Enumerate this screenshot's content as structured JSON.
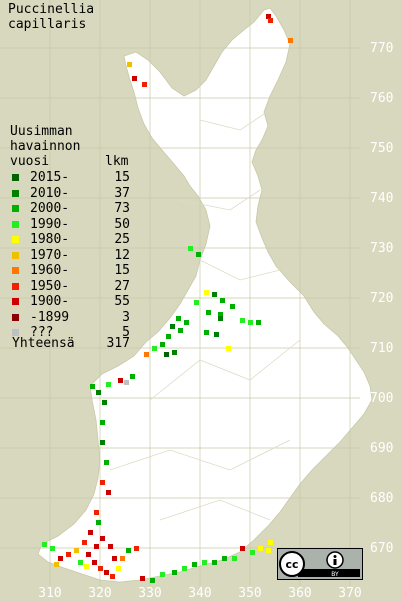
{
  "title_lines": [
    "Puccinellia",
    "capillaris"
  ],
  "legend_heading": [
    "Uusimman",
    "havainnon",
    "vuosi"
  ],
  "legend_count_heading": "lkm",
  "legend": [
    {
      "label": "2015-",
      "count": "15",
      "color": "#006400"
    },
    {
      "label": "2010-",
      "count": "37",
      "color": "#008000"
    },
    {
      "label": "2000-",
      "count": "73",
      "color": "#00b000"
    },
    {
      "label": "1990-",
      "count": "50",
      "color": "#22ee22"
    },
    {
      "label": "1980-",
      "count": "25",
      "color": "#ffff00"
    },
    {
      "label": "1970-",
      "count": "12",
      "color": "#f0c000"
    },
    {
      "label": "1960-",
      "count": "15",
      "color": "#ff7700"
    },
    {
      "label": "1950-",
      "count": "27",
      "color": "#ee2200"
    },
    {
      "label": "1900-",
      "count": "55",
      "color": "#cc0000"
    },
    {
      "label": "-1899",
      "count": "3",
      "color": "#880000"
    },
    {
      "label": "???",
      "count": "5",
      "color": "#c0c0c0"
    }
  ],
  "total_label": "Yhteensä",
  "total_count": "317",
  "y_axis_labels": [
    "770",
    "760",
    "750",
    "740",
    "730",
    "720",
    "710",
    "700",
    "690",
    "680",
    "670"
  ],
  "x_axis_labels": [
    "310",
    "320",
    "330",
    "340",
    "350",
    "360",
    "370"
  ],
  "license_badge": {
    "cc": "cc",
    "by": "BY"
  },
  "colors": {
    "background": "#d8d8bf",
    "land": "#ffffff",
    "grid": "#c8c8a8",
    "axis_text": "#ffffff"
  }
}
